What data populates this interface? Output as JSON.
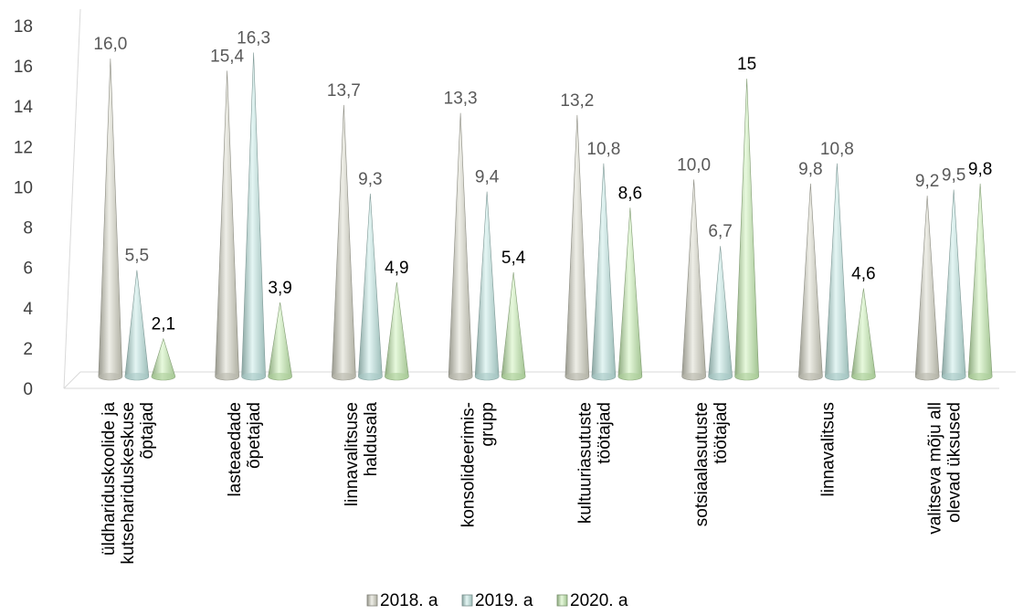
{
  "chart_data": {
    "type": "bar",
    "title": "",
    "xlabel": "",
    "ylabel": "",
    "ylim": [
      0,
      18
    ],
    "yticks": [
      0,
      2,
      4,
      6,
      8,
      10,
      12,
      14,
      16,
      18
    ],
    "grid": false,
    "legend_position": "bottom",
    "bar_shape": "cone",
    "categories": [
      [
        "üldhariduskoolide ja",
        "kutsehariduskeskuse",
        "õptajad"
      ],
      [
        "lasteaedade",
        "õpetajad"
      ],
      [
        "linnavalitsuse",
        "haldusala"
      ],
      [
        "konsolideerimis-",
        "grupp"
      ],
      [
        "kultuuriasutuste",
        "töötajad"
      ],
      [
        "sotsiaalasutuste",
        "töötajad"
      ],
      [
        "linnavalitsus"
      ],
      [
        "valitseva mõju all",
        "olevad üksused"
      ]
    ],
    "series": [
      {
        "name": "2018. a",
        "color": "#d9d9c9",
        "values": [
          16.0,
          15.4,
          13.7,
          13.3,
          13.2,
          10.0,
          9.8,
          9.2
        ],
        "labels": [
          "16,0",
          "15,4",
          "13,7",
          "13,3",
          "13,2",
          "10,0",
          "9,8",
          "9,2"
        ]
      },
      {
        "name": "2019. a",
        "color": "#c3ebe6",
        "values": [
          5.5,
          16.3,
          9.3,
          9.4,
          10.8,
          6.7,
          10.8,
          9.5
        ],
        "labels": [
          "5,5",
          "16,3",
          "9,3",
          "9,4",
          "10,8",
          "6,7",
          "10,8",
          "9,5"
        ]
      },
      {
        "name": "2020. a",
        "color": "#c9f2b4",
        "values": [
          2.1,
          3.9,
          4.9,
          5.4,
          8.6,
          15,
          4.6,
          9.8
        ],
        "labels": [
          "2,1",
          "3,9",
          "4,9",
          "5,4",
          "8,6",
          "15",
          "4,6",
          "9,8"
        ]
      }
    ]
  }
}
